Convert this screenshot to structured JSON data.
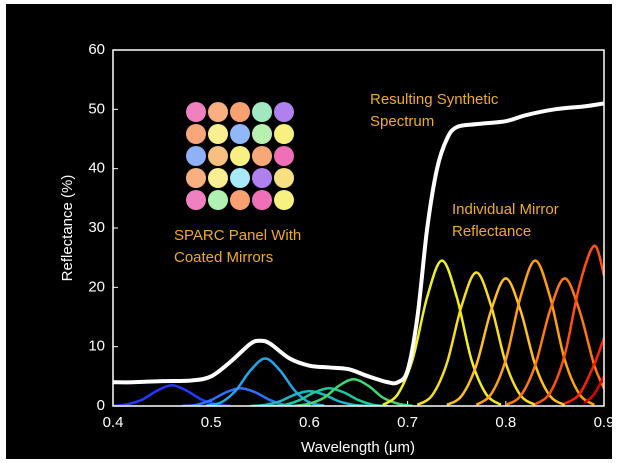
{
  "chart_data": {
    "type": "line",
    "xlabel": "Wavelength (μm)",
    "ylabel": "Reflectance (%)",
    "xlim": [
      0.4,
      0.9
    ],
    "xticks": [
      0.4,
      0.5,
      0.6,
      0.7,
      0.8,
      0.9
    ],
    "ylim": [
      0,
      60
    ],
    "yticks": [
      0,
      10,
      20,
      30,
      40,
      50,
      60
    ],
    "grid": false,
    "annotations": [
      {
        "lines": [
          "Resulting Synthetic",
          "Spectrum"
        ]
      },
      {
        "lines": [
          "Individual Mirror",
          "Reflectance"
        ]
      },
      {
        "lines": [
          "SPARC Panel With",
          "Coated Mirrors"
        ]
      }
    ],
    "series": [
      {
        "color": "#2438ff",
        "x": [
          0.4,
          0.415,
          0.43,
          0.445,
          0.46,
          0.475,
          0.49,
          0.505,
          0.52
        ],
        "values": [
          0,
          0.3,
          1.1,
          2.6,
          3.5,
          2.6,
          1.1,
          0.3,
          0
        ]
      },
      {
        "color": "#3470ff",
        "x": [
          0.47,
          0.485,
          0.5,
          0.515,
          0.53,
          0.545,
          0.56,
          0.575,
          0.59
        ],
        "values": [
          0,
          0.2,
          1,
          2.3,
          3,
          2.3,
          1,
          0.2,
          0
        ]
      },
      {
        "color": "#20a8e8",
        "x": [
          0.495,
          0.51,
          0.525,
          0.54,
          0.555,
          0.57,
          0.585,
          0.6,
          0.615
        ],
        "values": [
          0.1,
          0.6,
          2.6,
          6,
          8,
          6,
          2.6,
          0.6,
          0.1
        ]
      },
      {
        "color": "#20b8c8",
        "x": [
          0.54,
          0.555,
          0.57,
          0.585,
          0.6,
          0.615,
          0.63,
          0.645,
          0.66
        ],
        "values": [
          0,
          0.2,
          0.8,
          1.9,
          2.5,
          1.9,
          0.8,
          0.2,
          0
        ]
      },
      {
        "color": "#20c8a0",
        "x": [
          0.56,
          0.575,
          0.59,
          0.605,
          0.62,
          0.635,
          0.65,
          0.665,
          0.68
        ],
        "values": [
          0,
          0.2,
          1,
          2.3,
          3,
          2.3,
          1,
          0.2,
          0
        ]
      },
      {
        "color": "#40d870",
        "x": [
          0.585,
          0.6,
          0.615,
          0.63,
          0.645,
          0.66,
          0.675,
          0.69,
          0.705
        ],
        "values": [
          0,
          0.4,
          1.4,
          3.4,
          4.5,
          3.4,
          1.4,
          0.4,
          0
        ]
      },
      {
        "color": "#f0f020",
        "x": [
          0.675,
          0.69,
          0.705,
          0.72,
          0.735,
          0.75,
          0.765,
          0.78,
          0.795
        ],
        "values": [
          0.2,
          2,
          7.8,
          18.4,
          24.5,
          18.4,
          7.8,
          2,
          0.2
        ]
      },
      {
        "color": "#f8dc20",
        "x": [
          0.71,
          0.725,
          0.74,
          0.755,
          0.77,
          0.785,
          0.8,
          0.815,
          0.83
        ],
        "values": [
          0.2,
          1.8,
          7.2,
          16.9,
          22.5,
          16.9,
          7.2,
          1.8,
          0.2
        ]
      },
      {
        "color": "#ffc020",
        "x": [
          0.74,
          0.755,
          0.77,
          0.785,
          0.8,
          0.815,
          0.83,
          0.845,
          0.86
        ],
        "values": [
          0.2,
          1.7,
          6.9,
          16.1,
          21.5,
          16.1,
          6.9,
          1.7,
          0.2
        ]
      },
      {
        "color": "#ffa010",
        "x": [
          0.77,
          0.785,
          0.8,
          0.815,
          0.83,
          0.845,
          0.86,
          0.875,
          0.89
        ],
        "values": [
          0.2,
          2,
          7.8,
          18.4,
          24.5,
          18.4,
          7.8,
          2,
          0.2
        ]
      },
      {
        "color": "#ff7810",
        "x": [
          0.8,
          0.815,
          0.83,
          0.845,
          0.86,
          0.875,
          0.89,
          0.9
        ],
        "values": [
          0.2,
          1.7,
          6.9,
          16.1,
          21.5,
          16.1,
          6.9,
          3
        ]
      },
      {
        "color": "#ff5010",
        "x": [
          0.83,
          0.845,
          0.86,
          0.875,
          0.89,
          0.9
        ],
        "values": [
          0.3,
          2.2,
          8.6,
          20.3,
          27,
          22
        ]
      },
      {
        "color": "#ff2000",
        "x": [
          0.86,
          0.875,
          0.89,
          0.9
        ],
        "values": [
          0.4,
          2,
          7,
          11.5
        ]
      },
      {
        "color": "#e00000",
        "x": [
          0.88,
          0.89,
          0.9
        ],
        "values": [
          0.5,
          2,
          5
        ]
      },
      {
        "color": "#ffffff",
        "x": [
          0.4,
          0.42,
          0.45,
          0.48,
          0.5,
          0.52,
          0.54,
          0.55,
          0.56,
          0.58,
          0.6,
          0.62,
          0.64,
          0.66,
          0.68,
          0.69,
          0.7,
          0.71,
          0.72,
          0.73,
          0.74,
          0.75,
          0.77,
          0.8,
          0.82,
          0.85,
          0.88,
          0.9
        ],
        "values": [
          4,
          4,
          4.2,
          4.3,
          5,
          7.5,
          10.5,
          11,
          10.5,
          8,
          6.8,
          6.5,
          6.2,
          5,
          4,
          4,
          6,
          15,
          30,
          40,
          45,
          47,
          47.5,
          48,
          49,
          50,
          50.5,
          51
        ]
      }
    ]
  }
}
